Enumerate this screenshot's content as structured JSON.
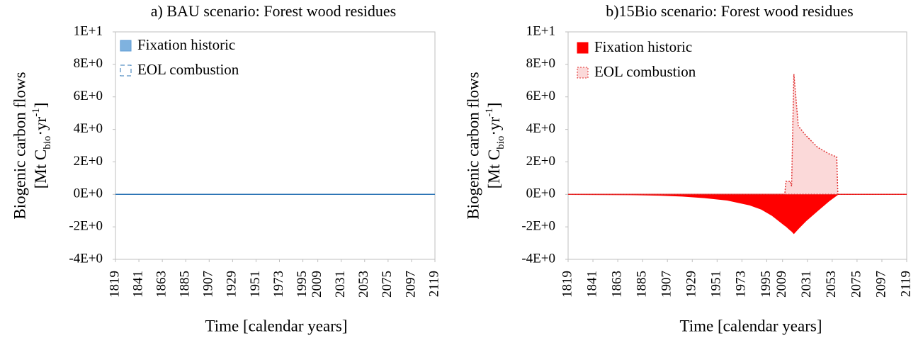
{
  "chart_data": [
    {
      "type": "area",
      "title": "a) BAU scenario: Forest wood residues",
      "x": [
        1819,
        2119
      ],
      "series": [
        {
          "name": "Fixation historic",
          "color": "#5b9bd5",
          "fill": "#7fb2df",
          "line_style": "solid",
          "values": [
            0,
            0
          ]
        },
        {
          "name": "EOL combustion",
          "color": "#2e75b6",
          "fill": "#ffffff",
          "line_style": "dashed",
          "values": [
            0,
            0
          ]
        }
      ],
      "xlim": [
        1819,
        2119
      ],
      "xticks": [
        1819,
        1841,
        1863,
        1885,
        1907,
        1929,
        1951,
        1973,
        1995,
        2009,
        2031,
        2053,
        2075,
        2097,
        2119
      ],
      "ylim": [
        -4,
        10
      ],
      "yticks": [
        {
          "value": -4,
          "label": "-4E+0"
        },
        {
          "value": -2,
          "label": "-2E+0"
        },
        {
          "value": 0,
          "label": "0E+0"
        },
        {
          "value": 2,
          "label": "2E+0"
        },
        {
          "value": 4,
          "label": "4E+0"
        },
        {
          "value": 6,
          "label": "6E+0"
        },
        {
          "value": 8,
          "label": "8E+0"
        },
        {
          "value": 10,
          "label": "1E+1"
        }
      ],
      "xlabel": "Time [calendar years]",
      "ylabel": [
        "Biogenic carbon flows",
        "[Mt C",
        "bio",
        "·yr",
        "-1",
        "]"
      ]
    },
    {
      "type": "area",
      "title": "b)15Bio scenario: Forest wood residues",
      "x": [
        1819,
        1880,
        1900,
        1920,
        1940,
        1960,
        1980,
        1990,
        2000,
        2010,
        2011,
        2012,
        2016,
        2017,
        2019,
        2023,
        2030,
        2040,
        2050,
        2057,
        2058,
        2119
      ],
      "series": [
        {
          "name": "Fixation historic",
          "color": "#ff0000",
          "fill": "#ff0000",
          "line_style": "solid",
          "values": [
            0,
            -0.02,
            -0.05,
            -0.1,
            -0.2,
            -0.35,
            -0.65,
            -0.9,
            -1.3,
            -1.85,
            -1.9,
            -1.95,
            -2.2,
            -2.25,
            -2.4,
            -2.1,
            -1.6,
            -1.0,
            -0.4,
            -0.05,
            0,
            0
          ]
        },
        {
          "name": "EOL combustion",
          "color": "#e03030",
          "fill": "#fbd9d9",
          "line_style": "dotted",
          "values": [
            0,
            0,
            0,
            0,
            0,
            0,
            0,
            0,
            0,
            0,
            0,
            0.8,
            0.8,
            0.5,
            7.4,
            4.2,
            3.6,
            2.9,
            2.5,
            2.3,
            0,
            0
          ]
        }
      ],
      "xlim": [
        1819,
        2119
      ],
      "xticks": [
        1819,
        1841,
        1863,
        1885,
        1907,
        1929,
        1951,
        1973,
        1995,
        2009,
        2031,
        2053,
        2075,
        2097,
        2119
      ],
      "ylim": [
        -4,
        10
      ],
      "yticks": [
        {
          "value": -4,
          "label": "-4E+0"
        },
        {
          "value": -2,
          "label": "-2E+0"
        },
        {
          "value": 0,
          "label": "0E+0"
        },
        {
          "value": 2,
          "label": "2E+0"
        },
        {
          "value": 4,
          "label": "4E+0"
        },
        {
          "value": 6,
          "label": "6E+0"
        },
        {
          "value": 8,
          "label": "8E+0"
        },
        {
          "value": 10,
          "label": "1E+1"
        }
      ],
      "xlabel": "Time [calendar years]",
      "ylabel": [
        "Biogenic carbon flows",
        "[Mt C",
        "bio",
        "·yr",
        "-1",
        "]"
      ]
    }
  ]
}
